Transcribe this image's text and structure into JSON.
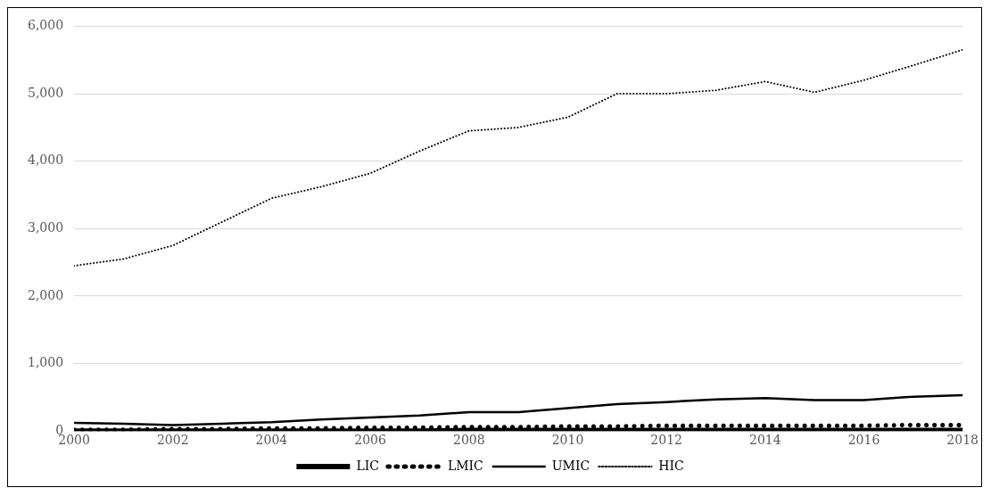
{
  "chart_data": {
    "type": "line",
    "x": [
      2000,
      2001,
      2002,
      2003,
      2004,
      2005,
      2006,
      2007,
      2008,
      2009,
      2010,
      2011,
      2012,
      2013,
      2014,
      2015,
      2016,
      2017,
      2018
    ],
    "xlim": [
      2000,
      2018
    ],
    "xticks": [
      2000,
      2002,
      2004,
      2006,
      2008,
      2010,
      2012,
      2014,
      2016,
      2018
    ],
    "ylim": [
      0,
      6000
    ],
    "yticks": [
      {
        "value": 0,
        "label": "0"
      },
      {
        "value": 1000,
        "label": "1,000"
      },
      {
        "value": 2000,
        "label": "2,000"
      },
      {
        "value": 3000,
        "label": "3,000"
      },
      {
        "value": 4000,
        "label": "4,000"
      },
      {
        "value": 5000,
        "label": "5,000"
      },
      {
        "value": 6000,
        "label": "6,000"
      }
    ],
    "grid": "y",
    "legend": "bottom",
    "marker": "none",
    "series": [
      {
        "name": "LIC",
        "color": "#000000",
        "line_style": "solid",
        "values": [
          0,
          0,
          0,
          0,
          0,
          0,
          0,
          0,
          10,
          10,
          10,
          10,
          10,
          10,
          10,
          10,
          10,
          10,
          10
        ]
      },
      {
        "name": "LMIC",
        "color": "#000000",
        "line_style": "dotted",
        "values": [
          20,
          20,
          30,
          30,
          40,
          40,
          50,
          50,
          60,
          60,
          70,
          70,
          80,
          80,
          80,
          80,
          80,
          90,
          90
        ]
      },
      {
        "name": "UMIC",
        "color": "#000000",
        "line_style": "solid",
        "values": [
          120,
          110,
          90,
          110,
          130,
          170,
          200,
          230,
          280,
          280,
          340,
          400,
          430,
          470,
          490,
          460,
          460,
          510,
          530
        ]
      },
      {
        "name": "HIC",
        "color": "#000000",
        "line_style": "dotted",
        "values": [
          2450,
          2550,
          2750,
          3100,
          3450,
          3620,
          3820,
          4150,
          4450,
          4500,
          4650,
          5000,
          5000,
          5050,
          5180,
          5020,
          5200,
          5420,
          5650
        ]
      }
    ]
  }
}
